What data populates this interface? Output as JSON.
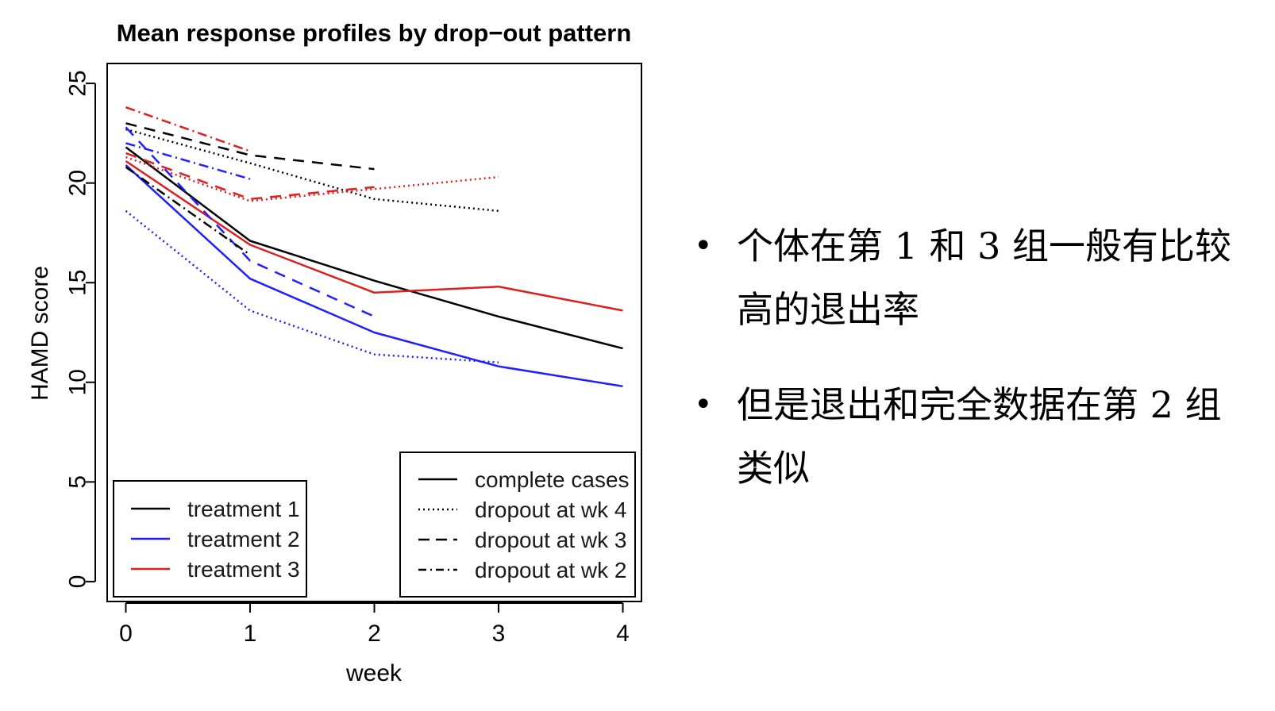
{
  "chart_data": {
    "type": "line",
    "title": "Mean response profiles by drop−out pattern",
    "xlabel": "week",
    "ylabel": "HAMD score",
    "x_ticks": [
      "0",
      "1",
      "2",
      "3",
      "4"
    ],
    "y_ticks": [
      "0",
      "5",
      "10",
      "15",
      "20",
      "25"
    ],
    "xlim": [
      -0.15,
      4.15
    ],
    "ylim": [
      -1,
      26
    ],
    "series": [
      {
        "name": "treatment 1 / complete cases",
        "treatment": "treatment 1",
        "pattern": "complete cases",
        "x": [
          0,
          1,
          2,
          3,
          4
        ],
        "y": [
          21.8,
          17.1,
          15.1,
          13.3,
          11.7
        ]
      },
      {
        "name": "treatment 2 / complete cases",
        "treatment": "treatment 2",
        "pattern": "complete cases",
        "x": [
          0,
          1,
          2,
          3,
          4
        ],
        "y": [
          20.9,
          15.2,
          12.5,
          10.8,
          9.8
        ]
      },
      {
        "name": "treatment 3 / complete cases",
        "treatment": "treatment 3",
        "pattern": "complete cases",
        "x": [
          0,
          1,
          2,
          3,
          4
        ],
        "y": [
          21.1,
          16.9,
          14.5,
          14.8,
          13.6
        ]
      },
      {
        "name": "treatment 1 / dropout at wk 4",
        "treatment": "treatment 1",
        "pattern": "dropout at wk 4",
        "x": [
          0,
          1,
          2,
          3
        ],
        "y": [
          22.7,
          21.0,
          19.2,
          18.6
        ]
      },
      {
        "name": "treatment 2 / dropout at wk 4",
        "treatment": "treatment 2",
        "pattern": "dropout at wk 4",
        "x": [
          0,
          1,
          2,
          3
        ],
        "y": [
          18.6,
          13.6,
          11.4,
          11.0
        ]
      },
      {
        "name": "treatment 3 / dropout at wk 4",
        "treatment": "treatment 3",
        "pattern": "dropout at wk 4",
        "x": [
          0,
          1,
          2,
          3
        ],
        "y": [
          21.3,
          19.1,
          19.7,
          20.3
        ]
      },
      {
        "name": "treatment 1 / dropout at wk 3",
        "treatment": "treatment 1",
        "pattern": "dropout at wk 3",
        "x": [
          0,
          1,
          2
        ],
        "y": [
          23.0,
          21.4,
          20.7
        ]
      },
      {
        "name": "treatment 2 / dropout at wk 3",
        "treatment": "treatment 2",
        "pattern": "dropout at wk 3",
        "x": [
          0,
          1,
          2
        ],
        "y": [
          22.8,
          16.1,
          13.3
        ]
      },
      {
        "name": "treatment 3 / dropout at wk 3",
        "treatment": "treatment 3",
        "pattern": "dropout at wk 3",
        "x": [
          0,
          1,
          2
        ],
        "y": [
          21.5,
          19.2,
          19.8
        ]
      },
      {
        "name": "treatment 1 / dropout at wk 2",
        "treatment": "treatment 1",
        "pattern": "dropout at wk 2",
        "x": [
          0,
          1
        ],
        "y": [
          20.8,
          16.4
        ]
      },
      {
        "name": "treatment 2 / dropout at wk 2",
        "treatment": "treatment 2",
        "pattern": "dropout at wk 2",
        "x": [
          0,
          1
        ],
        "y": [
          22.0,
          20.2
        ]
      },
      {
        "name": "treatment 3 / dropout at wk 2",
        "treatment": "treatment 3",
        "pattern": "dropout at wk 2",
        "x": [
          0,
          1
        ],
        "y": [
          23.8,
          21.6
        ]
      }
    ],
    "legend_treatment": {
      "placement": "bottom-left",
      "entries": [
        {
          "label": "treatment 1",
          "color": "#000000"
        },
        {
          "label": "treatment 2",
          "color": "#1f1fff"
        },
        {
          "label": "treatment 3",
          "color": "#dd1f1f"
        }
      ]
    },
    "legend_pattern": {
      "placement": "bottom-right",
      "entries": [
        {
          "label": "complete cases",
          "style": "solid"
        },
        {
          "label": "dropout at wk 4",
          "style": "dotted"
        },
        {
          "label": "dropout at wk 3",
          "style": "dashed"
        },
        {
          "label": "dropout at wk 2",
          "style": "dashdot"
        }
      ]
    },
    "treatment_colors": {
      "treatment 1": "#000000",
      "treatment 2": "#1f1fff",
      "treatment 3": "#dd1f1f"
    }
  },
  "bullets": [
    {
      "text": "个体在第 1 和 3 组一般有比较高的退出率"
    },
    {
      "text": "但是退出和完全数据在第 2 组类似"
    }
  ]
}
